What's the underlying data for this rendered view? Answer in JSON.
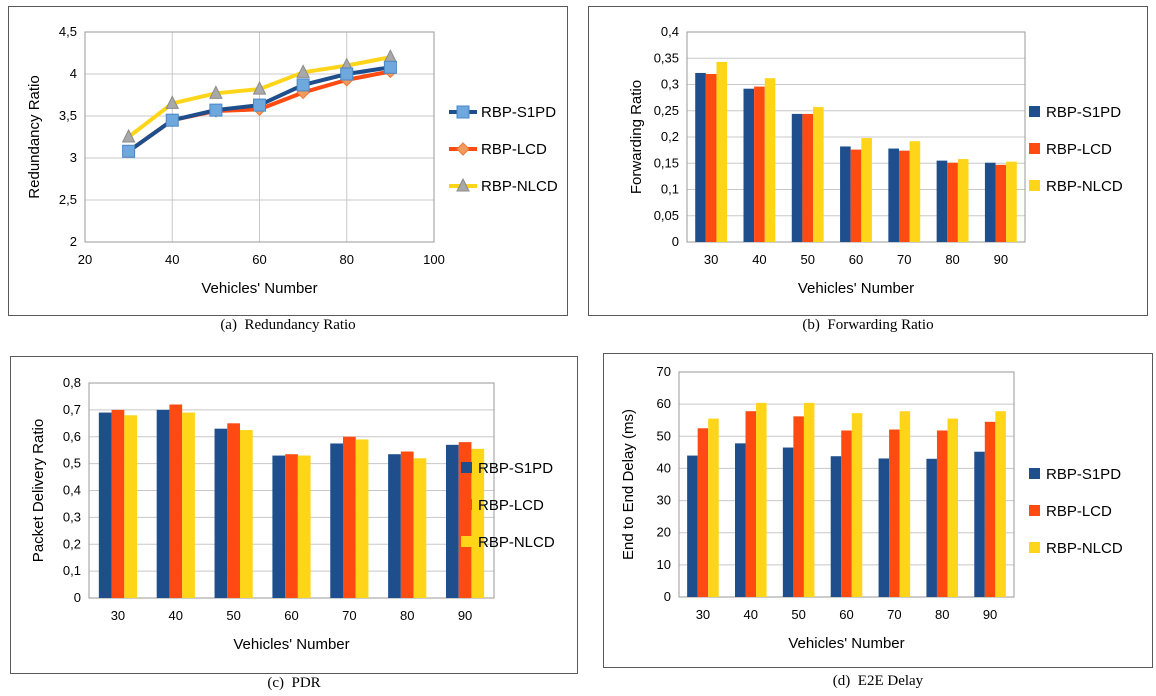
{
  "colors": {
    "RBP-S1PD": "#1f4e8c",
    "RBP-LCD": "#ff4a12",
    "RBP-NLCD": "#ffd51a"
  },
  "panels": [
    {
      "caption": "(a)  Redundancy Ratio"
    },
    {
      "caption": "(b)  Forwarding Ratio"
    },
    {
      "caption": "(c)  PDR"
    },
    {
      "caption": "(d)  E2E Delay"
    }
  ],
  "chart_data": [
    {
      "type": "line",
      "xlabel": "Vehicles' Number",
      "ylabel": "Redundancy Ratio",
      "xlim": [
        20,
        100
      ],
      "ylim": [
        2,
        4.5
      ],
      "xticks": [
        "20",
        "40",
        "60",
        "80",
        "100"
      ],
      "yticks": [
        "2",
        "2,5",
        "3",
        "3,5",
        "4",
        "4,5"
      ],
      "grid": true,
      "legend": "right",
      "x": [
        30,
        40,
        50,
        60,
        70,
        80,
        90
      ],
      "series": [
        {
          "name": "RBP-S1PD",
          "values": [
            3.08,
            3.45,
            3.57,
            3.63,
            3.87,
            4.0,
            4.08
          ]
        },
        {
          "name": "RBP-LCD",
          "values": [
            3.08,
            3.45,
            3.56,
            3.58,
            3.78,
            3.93,
            4.03
          ]
        },
        {
          "name": "RBP-NLCD",
          "values": [
            3.25,
            3.65,
            3.77,
            3.82,
            4.02,
            4.1,
            4.2
          ]
        }
      ]
    },
    {
      "type": "bar",
      "xlabel": "Vehicles' Number",
      "ylabel": "Forwarding Ratio",
      "ylim": [
        0,
        0.4
      ],
      "yticks": [
        "0",
        "0,05",
        "0,1",
        "0,15",
        "0,2",
        "0,25",
        "0,3",
        "0,35",
        "0,4"
      ],
      "grid": true,
      "legend": "right",
      "categories": [
        "30",
        "40",
        "50",
        "60",
        "70",
        "80",
        "90"
      ],
      "series": [
        {
          "name": "RBP-S1PD",
          "values": [
            0.322,
            0.292,
            0.244,
            0.182,
            0.178,
            0.155,
            0.151
          ]
        },
        {
          "name": "RBP-LCD",
          "values": [
            0.32,
            0.296,
            0.244,
            0.176,
            0.174,
            0.151,
            0.147
          ]
        },
        {
          "name": "RBP-NLCD",
          "values": [
            0.343,
            0.312,
            0.257,
            0.198,
            0.192,
            0.158,
            0.153
          ]
        }
      ]
    },
    {
      "type": "bar",
      "xlabel": "Vehicles' Number",
      "ylabel": "Packet Delivery Ratio",
      "ylim": [
        0,
        0.8
      ],
      "yticks": [
        "0",
        "0,1",
        "0,2",
        "0,3",
        "0,4",
        "0,5",
        "0,6",
        "0,7",
        "0,8"
      ],
      "grid": true,
      "legend": "right",
      "categories": [
        "30",
        "40",
        "50",
        "60",
        "70",
        "80",
        "90"
      ],
      "series": [
        {
          "name": "RBP-S1PD",
          "values": [
            0.69,
            0.7,
            0.63,
            0.53,
            0.575,
            0.535,
            0.57
          ]
        },
        {
          "name": "RBP-LCD",
          "values": [
            0.7,
            0.72,
            0.65,
            0.535,
            0.6,
            0.545,
            0.58
          ]
        },
        {
          "name": "RBP-NLCD",
          "values": [
            0.68,
            0.69,
            0.625,
            0.53,
            0.59,
            0.52,
            0.555
          ]
        }
      ]
    },
    {
      "type": "bar",
      "xlabel": "Vehicles' Number",
      "ylabel": "End to End Delay (ms)",
      "ylim": [
        0,
        70
      ],
      "yticks": [
        "0",
        "10",
        "20",
        "30",
        "40",
        "50",
        "60",
        "70"
      ],
      "grid": true,
      "legend": "right",
      "categories": [
        "30",
        "40",
        "50",
        "60",
        "70",
        "80",
        "90"
      ],
      "series": [
        {
          "name": "RBP-S1PD",
          "values": [
            44,
            47.8,
            46.5,
            43.8,
            43.1,
            43.0,
            45.2
          ]
        },
        {
          "name": "RBP-LCD",
          "values": [
            52.5,
            57.8,
            56.2,
            51.8,
            52.1,
            51.8,
            54.5
          ]
        },
        {
          "name": "RBP-NLCD",
          "values": [
            55.5,
            60.4,
            60.4,
            57.2,
            57.8,
            55.5,
            57.8
          ]
        }
      ]
    }
  ]
}
